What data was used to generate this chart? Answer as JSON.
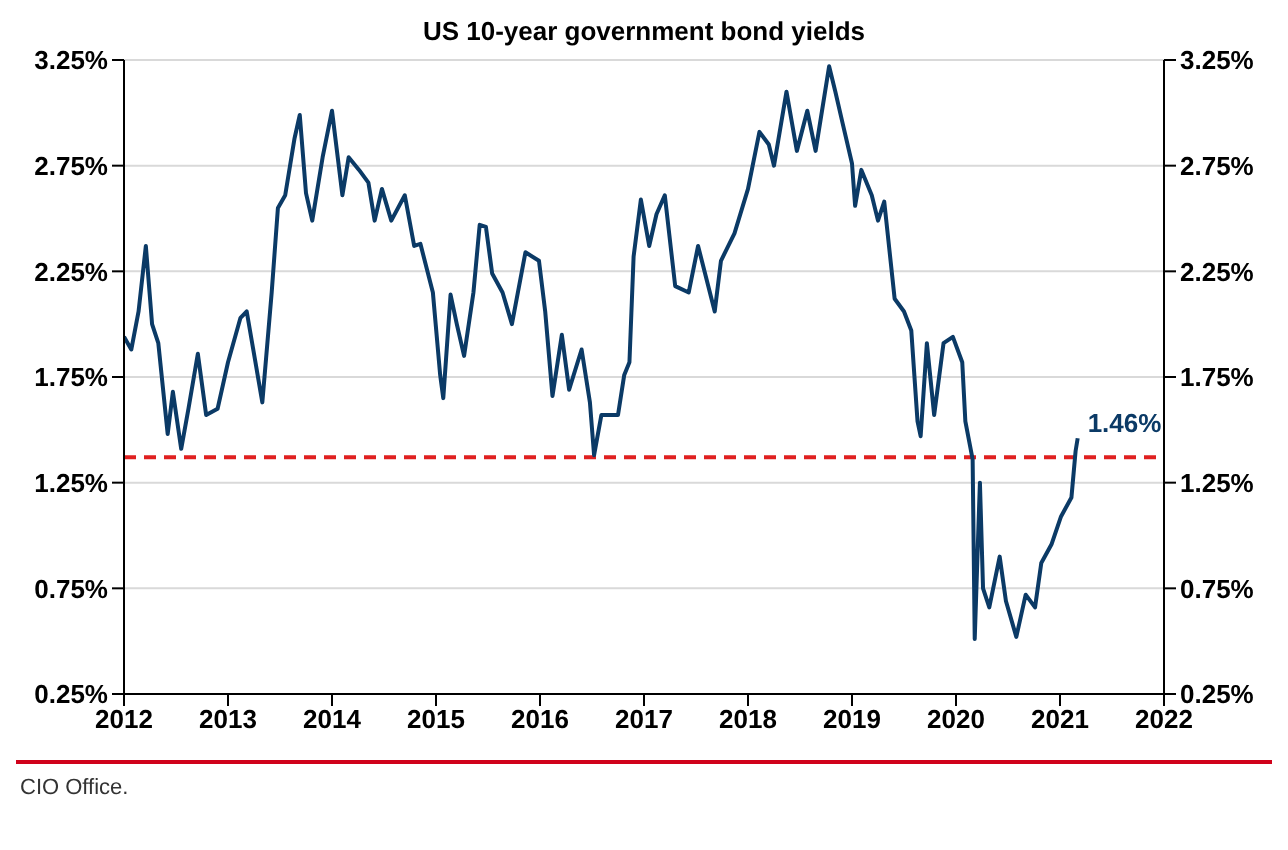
{
  "chart_data": {
    "type": "line",
    "title": "US 10-year government bond yields",
    "x": [
      2012.0,
      2012.07,
      2012.14,
      2012.21,
      2012.27,
      2012.33,
      2012.42,
      2012.47,
      2012.55,
      2012.62,
      2012.71,
      2012.79,
      2012.9,
      2013.0,
      2013.12,
      2013.18,
      2013.33,
      2013.42,
      2013.48,
      2013.55,
      2013.64,
      2013.69,
      2013.75,
      2013.81,
      2013.91,
      2014.0,
      2014.1,
      2014.16,
      2014.26,
      2014.35,
      2014.41,
      2014.48,
      2014.57,
      2014.7,
      2014.79,
      2014.85,
      2014.97,
      2015.04,
      2015.07,
      2015.14,
      2015.2,
      2015.27,
      2015.36,
      2015.42,
      2015.48,
      2015.54,
      2015.64,
      2015.73,
      2015.86,
      2015.99,
      2016.05,
      2016.12,
      2016.21,
      2016.28,
      2016.4,
      2016.48,
      2016.52,
      2016.59,
      2016.75,
      2016.81,
      2016.86,
      2016.9,
      2016.97,
      2017.05,
      2017.12,
      2017.2,
      2017.3,
      2017.43,
      2017.52,
      2017.68,
      2017.74,
      2017.87,
      2018.0,
      2018.11,
      2018.2,
      2018.25,
      2018.37,
      2018.47,
      2018.57,
      2018.65,
      2018.78,
      2018.84,
      2018.91,
      2019.0,
      2019.03,
      2019.09,
      2019.19,
      2019.25,
      2019.31,
      2019.41,
      2019.5,
      2019.57,
      2019.63,
      2019.66,
      2019.72,
      2019.79,
      2019.88,
      2019.97,
      2020.06,
      2020.09,
      2020.16,
      2020.18,
      2020.23,
      2020.26,
      2020.32,
      2020.42,
      2020.48,
      2020.58,
      2020.67,
      2020.76,
      2020.82,
      2020.92,
      2021.01,
      2021.11,
      2021.15,
      2021.17
    ],
    "series": [
      {
        "color": "#0b3a66",
        "values": [
          1.94,
          1.88,
          2.06,
          2.37,
          2.0,
          1.91,
          1.48,
          1.68,
          1.41,
          1.6,
          1.86,
          1.57,
          1.6,
          1.82,
          2.03,
          2.06,
          1.63,
          2.15,
          2.55,
          2.61,
          2.88,
          2.99,
          2.62,
          2.49,
          2.79,
          3.01,
          2.61,
          2.79,
          2.73,
          2.67,
          2.49,
          2.64,
          2.49,
          2.61,
          2.37,
          2.38,
          2.15,
          1.76,
          1.65,
          2.14,
          2.0,
          1.85,
          2.15,
          2.47,
          2.46,
          2.24,
          2.15,
          2.0,
          2.34,
          2.3,
          2.06,
          1.66,
          1.95,
          1.69,
          1.88,
          1.63,
          1.38,
          1.57,
          1.57,
          1.76,
          1.82,
          2.32,
          2.59,
          2.37,
          2.52,
          2.61,
          2.18,
          2.15,
          2.37,
          2.06,
          2.3,
          2.43,
          2.64,
          2.91,
          2.85,
          2.75,
          3.1,
          2.82,
          3.01,
          2.82,
          3.22,
          3.1,
          2.95,
          2.76,
          2.56,
          2.73,
          2.61,
          2.49,
          2.58,
          2.12,
          2.06,
          1.97,
          1.54,
          1.47,
          1.91,
          1.57,
          1.91,
          1.94,
          1.82,
          1.54,
          1.36,
          0.51,
          1.25,
          0.75,
          0.66,
          0.9,
          0.69,
          0.52,
          0.72,
          0.66,
          0.87,
          0.96,
          1.09,
          1.18,
          1.4,
          1.46
        ]
      }
    ],
    "xlim": [
      2012,
      2022
    ],
    "xticks": [
      2012,
      2013,
      2014,
      2015,
      2016,
      2017,
      2018,
      2019,
      2020,
      2021,
      2022
    ],
    "ylim": [
      0.25,
      3.25
    ],
    "yticks": [
      {
        "value": 0.25,
        "label": "0.25%"
      },
      {
        "value": 0.75,
        "label": "0.75%"
      },
      {
        "value": 1.25,
        "label": "1.25%"
      },
      {
        "value": 1.75,
        "label": "1.75%"
      },
      {
        "value": 2.25,
        "label": "2.25%"
      },
      {
        "value": 2.75,
        "label": "2.75%"
      },
      {
        "value": 3.25,
        "label": "3.25%"
      }
    ],
    "y2lim": [
      0.25,
      3.25
    ],
    "y2ticks": [
      {
        "value": 0.25,
        "label": "0.25%"
      },
      {
        "value": 0.75,
        "label": "0.75%"
      },
      {
        "value": 1.25,
        "label": "1.25%"
      },
      {
        "value": 1.75,
        "label": "1.75%"
      },
      {
        "value": 2.25,
        "label": "2.25%"
      },
      {
        "value": 2.75,
        "label": "2.75%"
      },
      {
        "value": 3.25,
        "label": "3.25%"
      }
    ],
    "ref_lines": [
      {
        "axis": "y",
        "value": 1.37,
        "color": "#e02020",
        "line_style": "dashed"
      }
    ],
    "annotations": [
      {
        "text": "1.46%",
        "x": 2021.17,
        "y": 1.46
      },
      "CIO Office."
    ],
    "grid": "y",
    "marker": "none"
  }
}
